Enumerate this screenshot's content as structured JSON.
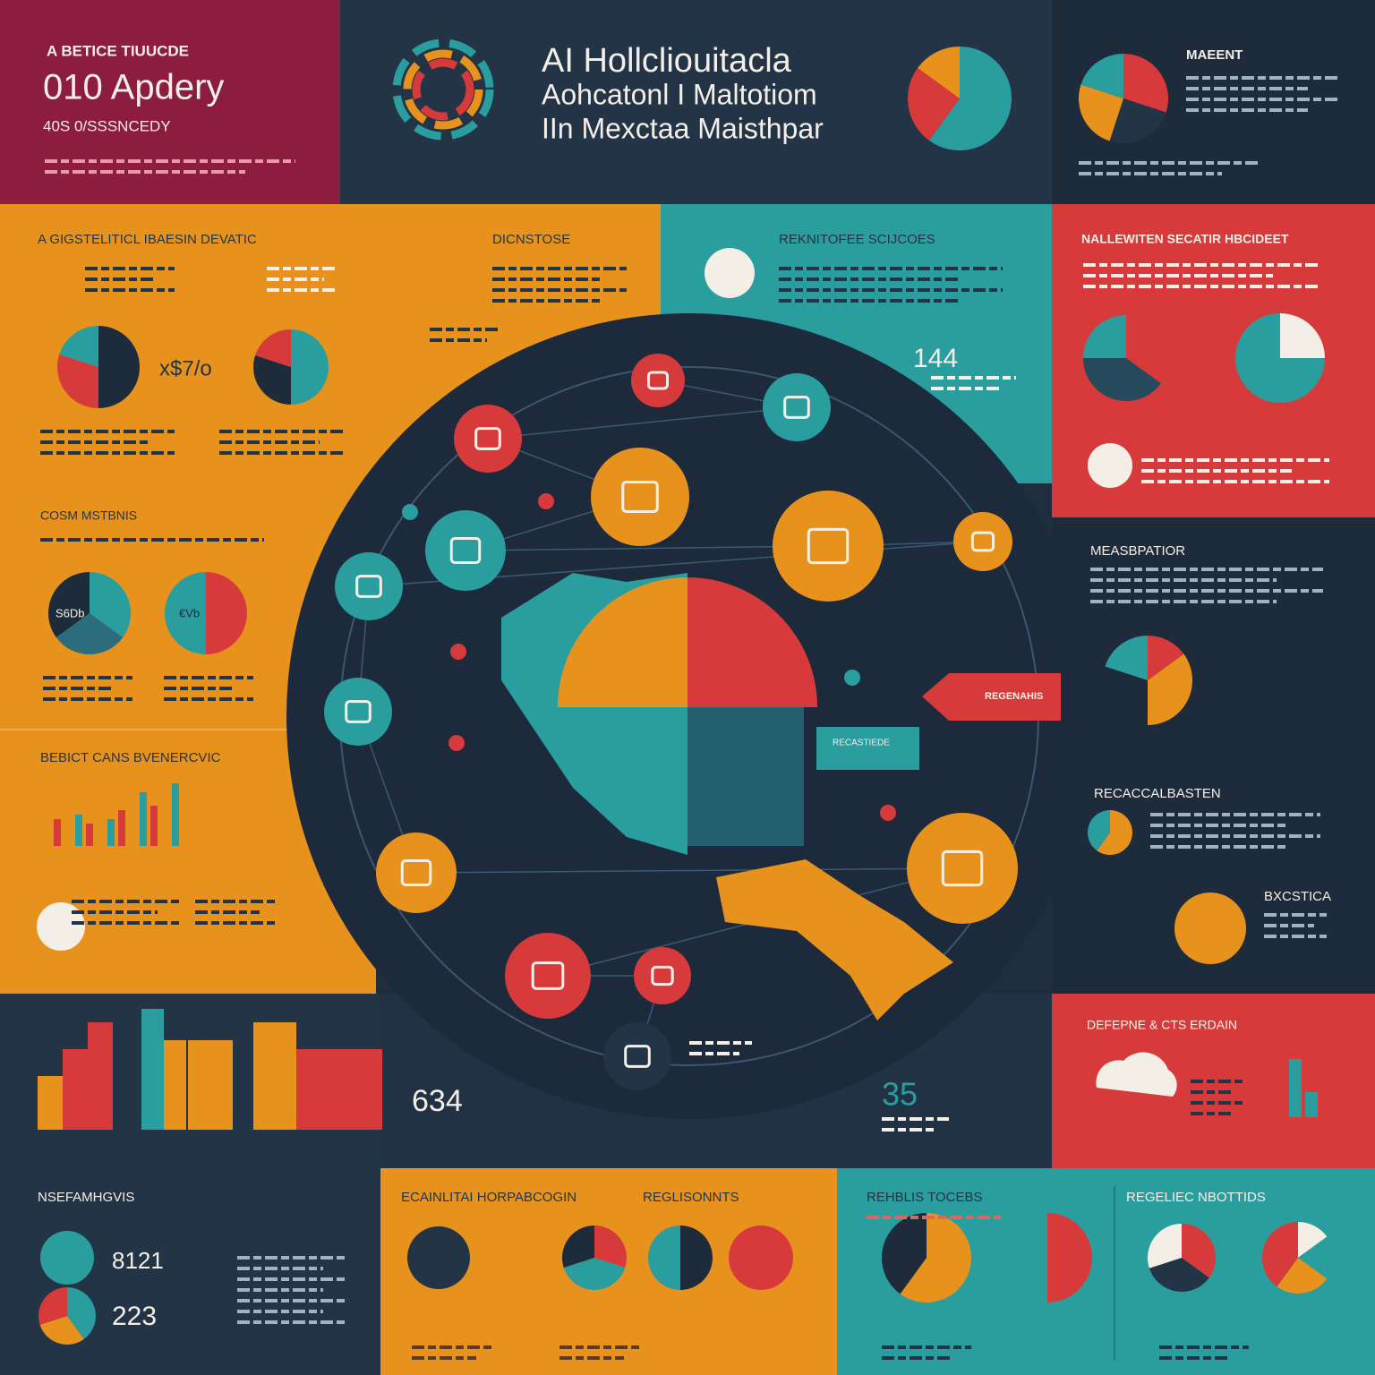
{
  "header": {
    "kicker": "A BETICE TIUUCDE",
    "stat": "010 Apdery",
    "subtitle": "40S 0/SSSNCEDY",
    "title": [
      "AI Hollcliouitacla",
      "Aohcatonl I Maltotiom",
      "IIn Mexctaa Maisthpar"
    ],
    "corner_heading": "MAEENT"
  },
  "sections": {
    "digital_basin": "A GIGSTELITICL IBAESIN DEVATIC",
    "dicnstose": "DICNSTOSE",
    "resources": "REKNITOFEE SCIJCOES",
    "network": "NALLEWITEN SECATIR HBCIDEET",
    "cosm": "COSM MSTBNIS",
    "beneficiaries": "BEBICT CANS BVENERCVIC",
    "measurement": "MEASBPATIOR",
    "recalibration": "RECACCALBASTEN",
    "bxcstica": "BXCSTICA",
    "defense": "DEFEPNE & CTS ERDAIN",
    "nsefam": "NSEFAMHGVIS",
    "ecainlitai": "ECAINLITAI HORPABCOGIN",
    "reglisonnts": "REGLISONNTS",
    "rehblis": "REHBLIS TOCEBS",
    "regeliec": "REGELIEC NBOTTIDS"
  },
  "stats": {
    "a": "x$7/o",
    "b": "144",
    "c": "634",
    "d": "35",
    "e": "8121",
    "f": "223"
  },
  "callouts": {
    "right": "REGENAHIS",
    "center": "RECASTIEDE"
  },
  "pie_labels": {
    "a": "S6Db",
    "b": "€Vb"
  }
}
